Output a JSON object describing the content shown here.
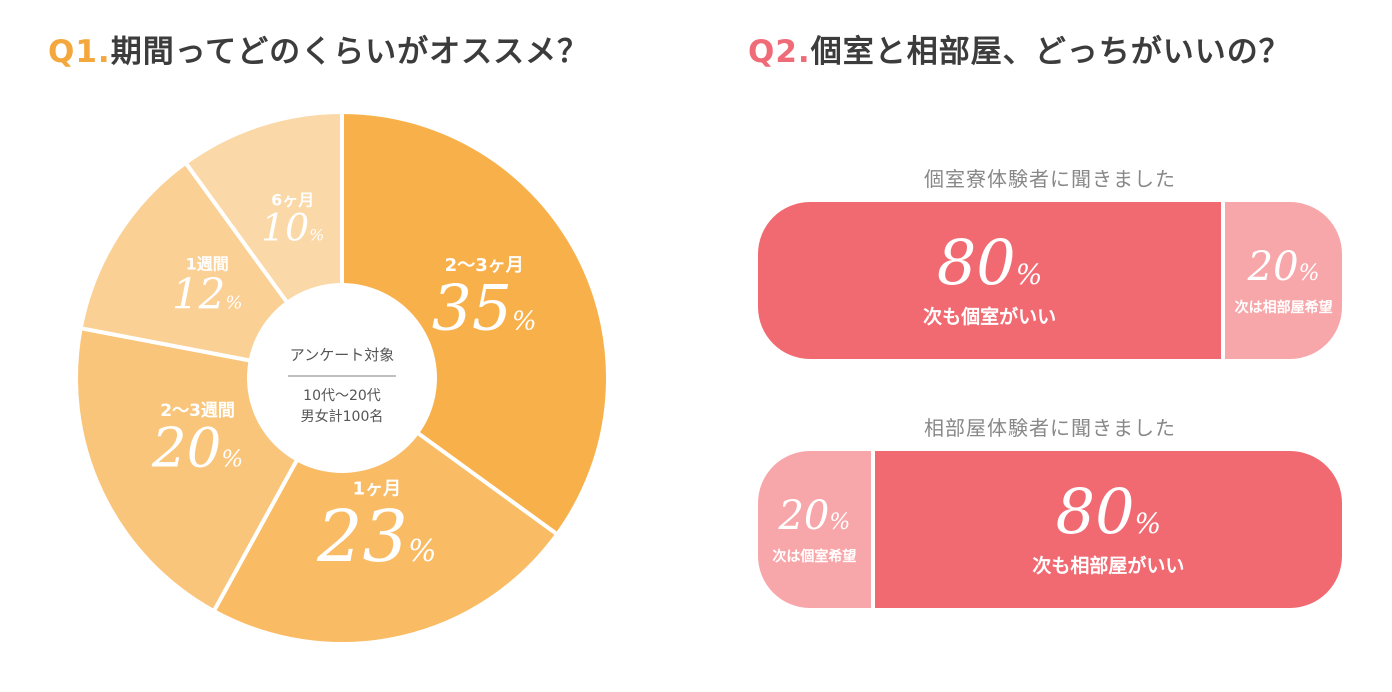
{
  "q1": {
    "num": "Q1.",
    "text": "期間ってどのくらいがオススメ？"
  },
  "q2": {
    "num": "Q2.",
    "text": "個室と相部屋、どっちがいいの？"
  },
  "colors": {
    "slices": [
      "#f8b04a",
      "#f9bb63",
      "#f9c57b",
      "#fad094",
      "#fbd8a7"
    ],
    "main": "#f16a72",
    "minor": "#f7a7aa",
    "q1_accent": "#f3a73c",
    "q2_accent": "#f06b78"
  },
  "chart_data": [
    {
      "type": "pie",
      "title": "期間ってどのくらいがオススメ？",
      "center": {
        "title": "アンケート対象",
        "line1": "10代〜20代",
        "line2": "男女計100名"
      },
      "slices": [
        {
          "label": "2〜3ヶ月",
          "value": 35
        },
        {
          "label": "1ヶ月",
          "value": 23
        },
        {
          "label": "2〜3週間",
          "value": 20
        },
        {
          "label": "1週間",
          "value": 12
        },
        {
          "label": "6ヶ月",
          "value": 10
        }
      ],
      "unit": "%"
    },
    {
      "type": "bar",
      "title": "個室寮体験者に聞きました",
      "segments": [
        {
          "label": "次も個室がいい",
          "value": 80
        },
        {
          "label": "次は相部屋希望",
          "value": 20
        }
      ],
      "unit": "%"
    },
    {
      "type": "bar",
      "title": "相部屋体験者に聞きました",
      "segments": [
        {
          "label": "次は個室希望",
          "value": 20
        },
        {
          "label": "次も相部屋がいい",
          "value": 80
        }
      ],
      "unit": "%"
    }
  ]
}
